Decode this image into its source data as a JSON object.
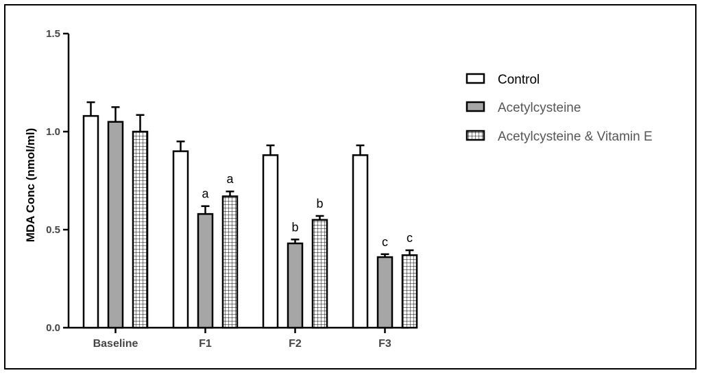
{
  "chart_data": {
    "type": "bar",
    "ylabel": "MDA Conc (nmol/ml)",
    "xlabel": "",
    "ylim": [
      0,
      1.5
    ],
    "yticks": [
      "0.0",
      "0.5",
      "1.0",
      "1.5"
    ],
    "categories": [
      "Baseline",
      "F1",
      "F2",
      "F3"
    ],
    "legend_position": "right",
    "series": [
      {
        "name": "Control",
        "fill": "white",
        "values": [
          1.08,
          0.9,
          0.88,
          0.88
        ],
        "errors": [
          0.07,
          0.05,
          0.05,
          0.05
        ],
        "letters": [
          "",
          "",
          "",
          ""
        ]
      },
      {
        "name": "Acetylcysteine",
        "fill": "#a6a6a6",
        "values": [
          1.05,
          0.58,
          0.43,
          0.36
        ],
        "errors": [
          0.075,
          0.04,
          0.02,
          0.015
        ],
        "letters": [
          "",
          "a",
          "b",
          "c"
        ]
      },
      {
        "name": "Acetylcysteine & Vitamin E",
        "fill": "grid",
        "values": [
          1.0,
          0.67,
          0.55,
          0.37
        ],
        "errors": [
          0.085,
          0.025,
          0.02,
          0.025
        ],
        "letters": [
          "",
          "a",
          "b",
          "c"
        ]
      }
    ]
  }
}
